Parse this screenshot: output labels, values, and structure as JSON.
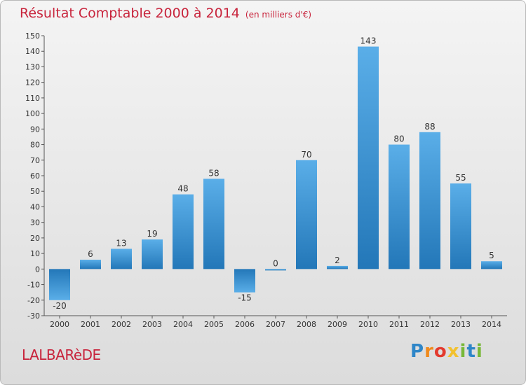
{
  "header": {
    "title": "Résultat Comptable 2000 à 2014",
    "unit": "(en milliers d'€)"
  },
  "chart_data": {
    "type": "bar",
    "categories": [
      "2000",
      "2001",
      "2002",
      "2003",
      "2004",
      "2005",
      "2006",
      "2007",
      "2008",
      "2009",
      "2010",
      "2011",
      "2012",
      "2013",
      "2014"
    ],
    "values": [
      -20,
      6,
      13,
      19,
      48,
      58,
      -15,
      0,
      70,
      2,
      143,
      80,
      88,
      55,
      5
    ],
    "data_labels": [
      "-20",
      "6",
      "13",
      "19",
      "48",
      "58",
      "-15",
      "0",
      "70",
      "2",
      "143",
      "80",
      "88",
      "55",
      "5"
    ],
    "title": "Résultat Comptable 2000 à 2014",
    "ylim": [
      -30,
      150
    ],
    "yticks": [
      -30,
      -20,
      -10,
      0,
      10,
      20,
      30,
      40,
      50,
      60,
      70,
      80,
      90,
      100,
      110,
      120,
      130,
      140,
      150
    ],
    "grid": false,
    "colors": {
      "bar_light": "#5aaee8",
      "bar_dark": "#2377b8",
      "axis": "#555555",
      "text": "#333333"
    }
  },
  "footer": {
    "commune": "LALBARèDE",
    "brand": [
      {
        "ch": "P",
        "color": "#2e86c8"
      },
      {
        "ch": "r",
        "color": "#f08a1c"
      },
      {
        "ch": "o",
        "color": "#e33a2e"
      },
      {
        "ch": "x",
        "color": "#f2c12e"
      },
      {
        "ch": "i",
        "color": "#78b838"
      },
      {
        "ch": "t",
        "color": "#2e86c8"
      },
      {
        "ch": "i",
        "color": "#78b838"
      }
    ]
  }
}
